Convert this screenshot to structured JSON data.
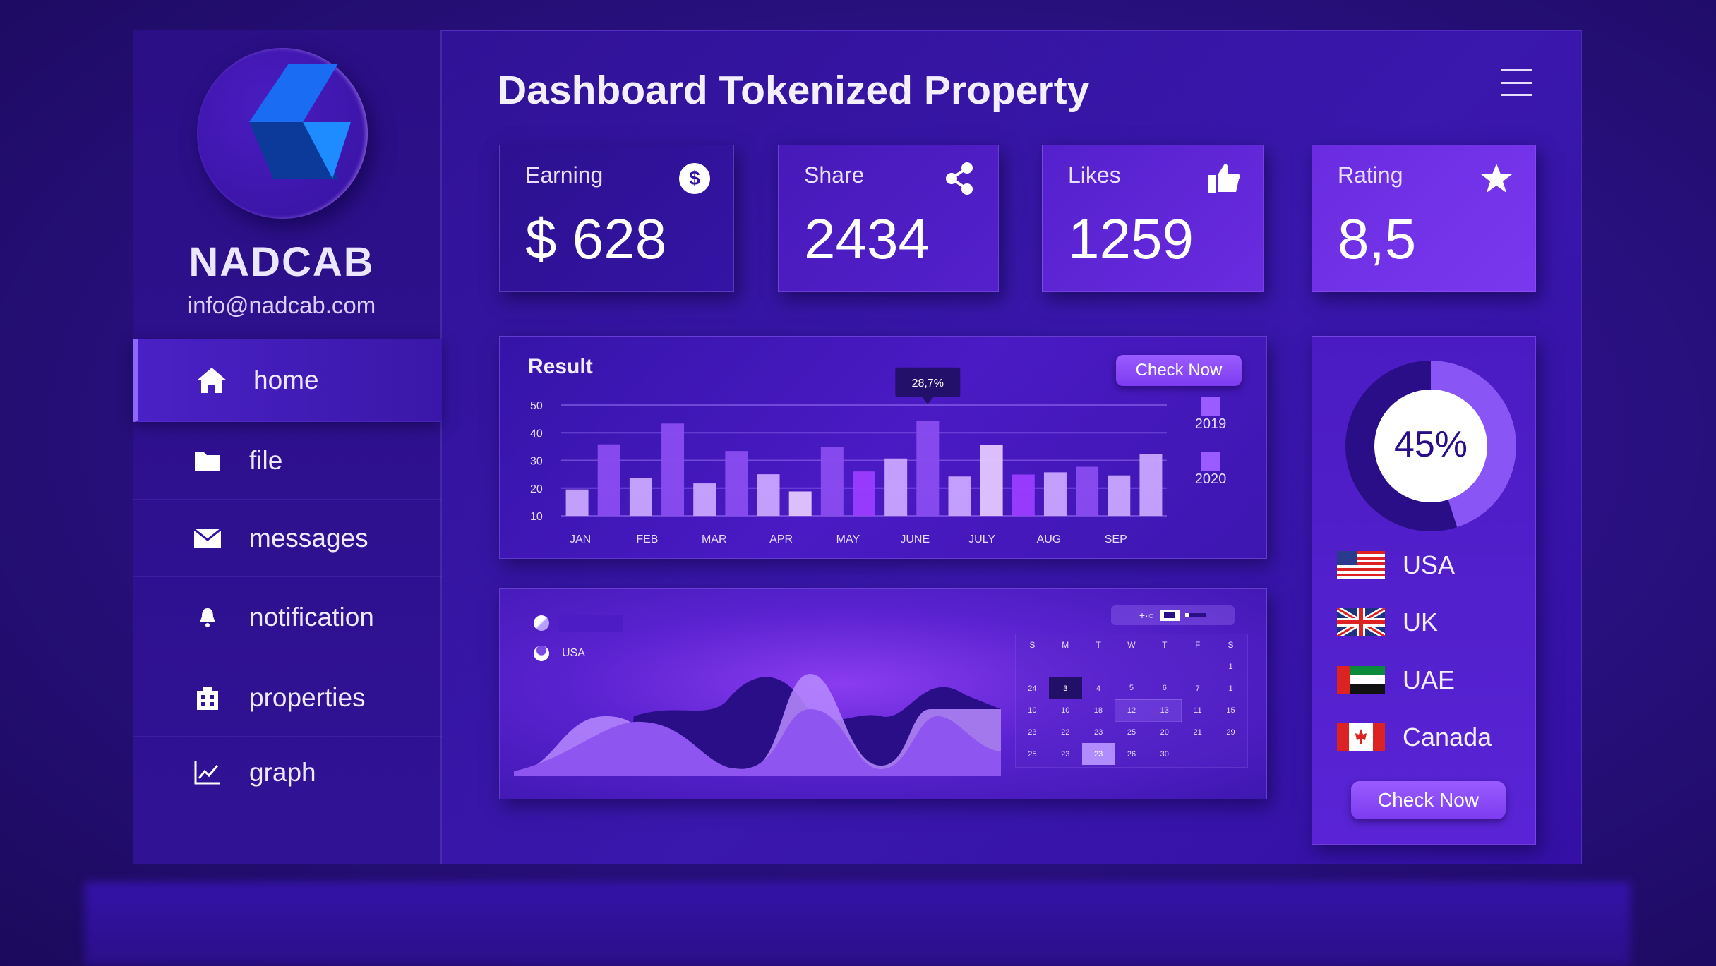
{
  "brand": {
    "name": "NADCAB",
    "email": "info@nadcab.com",
    "logo_colors": [
      "#1a6cf2",
      "#0b3a9a",
      "#1e8cff"
    ]
  },
  "sidebar": {
    "items": [
      {
        "label": "home",
        "icon": "home-icon",
        "active": true
      },
      {
        "label": "file",
        "icon": "folder-icon"
      },
      {
        "label": "messages",
        "icon": "envelope-icon"
      },
      {
        "label": "notification",
        "icon": "bell-icon"
      },
      {
        "label": "properties",
        "icon": "building-icon"
      },
      {
        "label": "graph",
        "icon": "chart-icon"
      }
    ]
  },
  "header": {
    "title": "Dashboard Tokenized Property",
    "menu_icon": "hamburger-icon"
  },
  "stats": [
    {
      "label": "Earning",
      "value": "$ 628",
      "icon": "dollar-icon"
    },
    {
      "label": "Share",
      "value": "2434",
      "icon": "share-icon"
    },
    {
      "label": "Likes",
      "value": "1259",
      "icon": "thumbs-up-icon"
    },
    {
      "label": "Rating",
      "value": "8,5",
      "icon": "star-icon"
    }
  ],
  "result": {
    "title": "Check Now",
    "heading": "Result",
    "tooltip": "28,7%"
  },
  "chart_data": {
    "type": "bar",
    "title": "Result",
    "categories": [
      "JAN",
      "FEB",
      "MAR",
      "APR",
      "MAY",
      "JUNE",
      "JULY",
      "AUG",
      "SEP"
    ],
    "yticks": [
      10,
      20,
      30,
      40,
      50
    ],
    "ylim": [
      10,
      50
    ],
    "grid": true,
    "legend": "right",
    "legend_entries": [
      "2019",
      "2020"
    ],
    "bars": [
      {
        "value": 19.5,
        "tone": "light"
      },
      {
        "value": 35.8,
        "tone": "purple"
      },
      {
        "value": 23.7,
        "tone": "light"
      },
      {
        "value": 43.3,
        "tone": "purple"
      },
      {
        "value": 21.7,
        "tone": "light"
      },
      {
        "value": 33.4,
        "tone": "purple"
      },
      {
        "value": 25,
        "tone": "light"
      },
      {
        "value": 18.8,
        "tone": "pale"
      },
      {
        "value": 34.8,
        "tone": "purple"
      },
      {
        "value": 26,
        "tone": "bright"
      },
      {
        "value": 30.7,
        "tone": "light"
      },
      {
        "value": 44.2,
        "tone": "purple"
      },
      {
        "value": 24.2,
        "tone": "light"
      },
      {
        "value": 35.5,
        "tone": "pale"
      },
      {
        "value": 24.9,
        "tone": "bright"
      },
      {
        "value": 25.7,
        "tone": "light"
      },
      {
        "value": 27.7,
        "tone": "purple"
      },
      {
        "value": 24.6,
        "tone": "light"
      },
      {
        "value": 32.4,
        "tone": "light"
      }
    ],
    "annotation": {
      "bar_index": 11,
      "text": "28,7%"
    },
    "colors": {
      "light": "#c9a6ff",
      "pale": "#e3c8ff",
      "purple": "#8a4cf0",
      "bright": "#9b3cff"
    }
  },
  "area": {
    "legend": [
      "",
      "USA"
    ]
  },
  "calendar": {
    "weekdays": [
      "S",
      "M",
      "T",
      "W",
      "T",
      "F",
      "S"
    ],
    "rows": [
      [
        "",
        "",
        "",
        "",
        "",
        "",
        "1"
      ],
      [
        "24",
        "3",
        "4",
        "5",
        "6",
        "7",
        "1"
      ],
      [
        "10",
        "10",
        "18",
        "12",
        "13",
        "11",
        "15"
      ],
      [
        "23",
        "22",
        "23",
        "25",
        "20",
        "21",
        "29"
      ],
      [
        "25",
        "23",
        "23",
        "26",
        "30",
        "",
        ""
      ]
    ]
  },
  "donut": {
    "value": 45,
    "label": "45%"
  },
  "countries": [
    {
      "name": "USA",
      "flag": "us-flag-icon"
    },
    {
      "name": "UK",
      "flag": "uk-flag-icon"
    },
    {
      "name": "UAE",
      "flag": "uae-flag-icon"
    },
    {
      "name": "Canada",
      "flag": "canada-flag-icon"
    }
  ],
  "right_panel": {
    "button": "Check Now"
  }
}
